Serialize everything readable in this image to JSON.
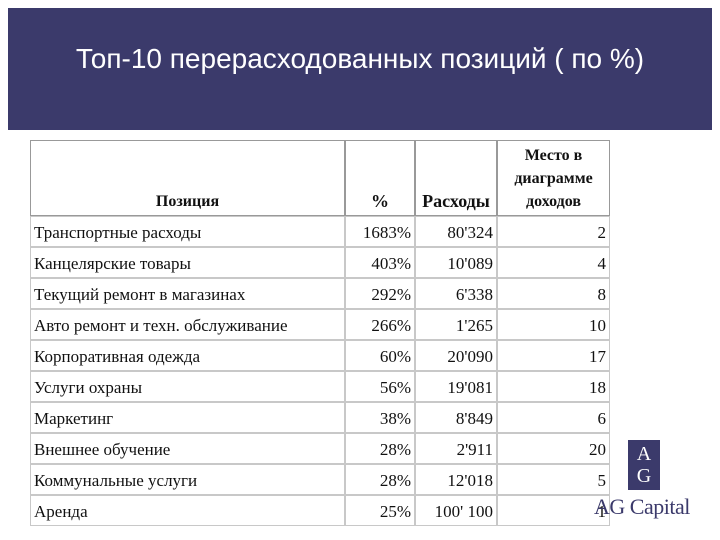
{
  "header": {
    "title": "Топ-10 перерасходованных позиций ( по %)"
  },
  "table": {
    "columns": [
      "Позиция",
      "%",
      "Расходы",
      "Место в диаграмме доходов"
    ],
    "rows": [
      [
        "Транспортные расходы",
        "1683%",
        "80'324",
        "2"
      ],
      [
        "Канцелярские товары",
        "403%",
        "10'089",
        "4"
      ],
      [
        "Текущий ремонт в магазинах",
        "292%",
        "6'338",
        "8"
      ],
      [
        "Авто ремонт и техн. обслуживание",
        "266%",
        "1'265",
        "10"
      ],
      [
        "Корпоративная одежда",
        "60%",
        "20'090",
        "17"
      ],
      [
        "Услуги охраны",
        "56%",
        "19'081",
        "18"
      ],
      [
        "Маркетинг",
        "38%",
        "8'849",
        "6"
      ],
      [
        "Внешнее обучение",
        "28%",
        "2'911",
        "20"
      ],
      [
        "Коммунальные услуги",
        "28%",
        "12'018",
        "5"
      ],
      [
        "Аренда",
        "25%",
        "100' 100",
        "1"
      ]
    ]
  },
  "logo": {
    "monogram": "AG",
    "name": "AG Capital"
  }
}
